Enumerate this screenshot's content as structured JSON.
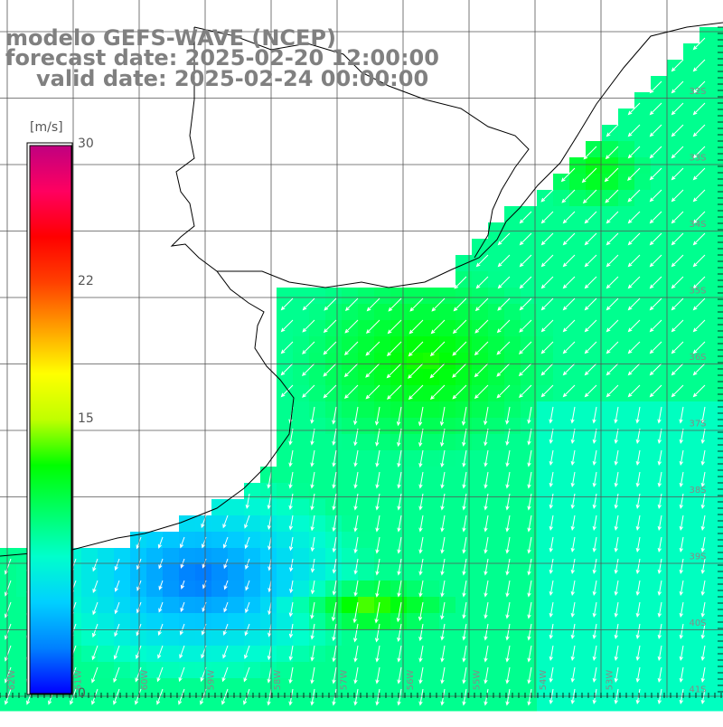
{
  "title": {
    "line1": "modelo GEFS-WAVE (NCEP)",
    "line2": "forecast date: 2025-02-20 12:00:00",
    "line3": "valid date: 2025-02-24 00:00:00"
  },
  "colorbar": {
    "unit": "[m/s]",
    "ticks": [
      "30",
      "22",
      "15",
      "0"
    ],
    "tick_values": [
      30,
      22,
      15,
      0
    ],
    "min": 0,
    "max": 30,
    "colors": [
      "#0000ff",
      "#0080ff",
      "#00d0ff",
      "#00ffcc",
      "#00ff66",
      "#00ff00",
      "#c0ff00",
      "#ffff00",
      "#ffa000",
      "#ff4000",
      "#ff0000",
      "#ff0060",
      "#c00080"
    ]
  },
  "map": {
    "lat_labels": [
      "32S",
      "33S",
      "34S",
      "35S",
      "36S",
      "37S",
      "38S",
      "39S",
      "40S",
      "41S"
    ],
    "lon_labels": [
      "62W",
      "61W",
      "60W",
      "59W",
      "58W",
      "57W",
      "56W",
      "55W",
      "54W",
      "53W"
    ],
    "colors": {
      "land": "#ffffff",
      "coast": "#000000",
      "grid": "#555555",
      "arrow": "#ffffff",
      "label": "#888888"
    },
    "wind_speed_zones_ms": [
      {
        "region": "north-east coastal strip",
        "speed": 11
      },
      {
        "region": "central open ocean",
        "speed": 12
      },
      {
        "region": "east open ocean",
        "speed": 9
      },
      {
        "region": "south-west near coast",
        "speed": 3
      },
      {
        "region": "south band",
        "speed": 13
      }
    ]
  }
}
